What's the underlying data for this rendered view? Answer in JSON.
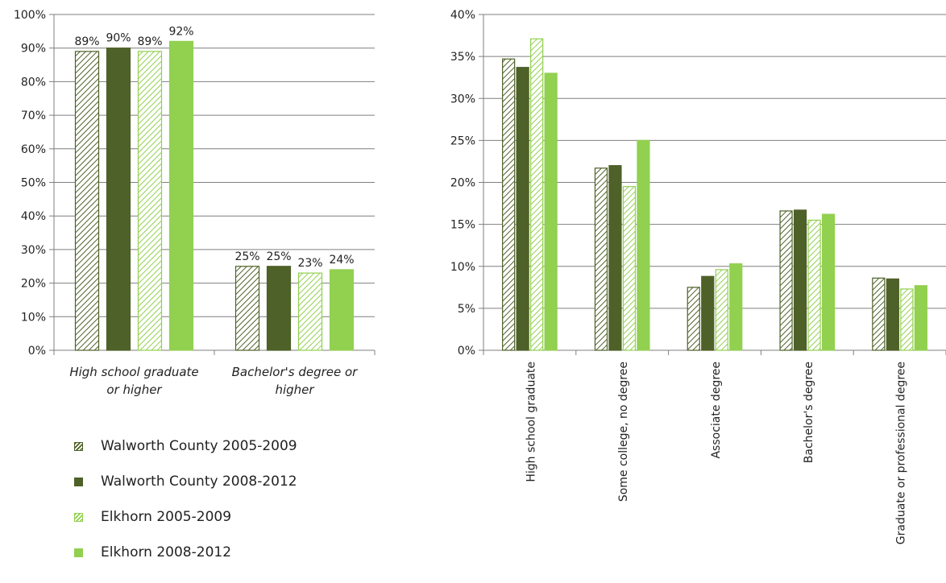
{
  "colors": {
    "walworth_dark": "#4e6128",
    "elkhorn_light": "#92d050",
    "grid": "#7f7f7f",
    "axis": "#7f7f7f"
  },
  "legend": [
    {
      "label": "Walworth County 2005-2009",
      "style": "hatch-dark"
    },
    {
      "label": "Walworth County 2008-2012",
      "style": "solid-dark"
    },
    {
      "label": "Elkhorn 2005-2009",
      "style": "hatch-light"
    },
    {
      "label": "Elkhorn 2008-2012",
      "style": "solid-light"
    }
  ],
  "chart_data": [
    {
      "type": "bar",
      "categories": [
        "High school graduate or higher",
        "Bachelor's degree or higher"
      ],
      "category_lines": [
        [
          "High school graduate",
          "or higher"
        ],
        [
          "Bachelor's degree or",
          "higher"
        ]
      ],
      "category_style": "italic",
      "ylim": [
        0,
        100
      ],
      "ystep": 10,
      "y_tick_format": "percent",
      "gridlines": true,
      "data_labels": true,
      "series": [
        {
          "name": "Walworth County 2005-2009",
          "style": "hatch-dark",
          "values": [
            89,
            25
          ],
          "labels": [
            "89%",
            "25%"
          ]
        },
        {
          "name": "Walworth County 2008-2012",
          "style": "solid-dark",
          "values": [
            90,
            25
          ],
          "labels": [
            "90%",
            "25%"
          ]
        },
        {
          "name": "Elkhorn 2005-2009",
          "style": "hatch-light",
          "values": [
            89,
            23
          ],
          "labels": [
            "89%",
            "23%"
          ]
        },
        {
          "name": "Elkhorn 2008-2012",
          "style": "solid-light",
          "values": [
            92,
            24
          ],
          "labels": [
            "92%",
            "24%"
          ]
        }
      ]
    },
    {
      "type": "bar",
      "categories": [
        "High school graduate",
        "Some college, no degree",
        "Associate degree",
        "Bachelor's degree",
        "Graduate or professional degree"
      ],
      "category_rotation": -90,
      "ylim": [
        0,
        40
      ],
      "ystep": 5,
      "y_tick_format": "percent",
      "gridlines": true,
      "data_labels": false,
      "series": [
        {
          "name": "Walworth County 2005-2009",
          "style": "hatch-dark",
          "values": [
            34.7,
            21.7,
            7.5,
            16.6,
            8.6
          ]
        },
        {
          "name": "Walworth County 2008-2012",
          "style": "solid-dark",
          "values": [
            33.7,
            22.0,
            8.8,
            16.7,
            8.5
          ]
        },
        {
          "name": "Elkhorn 2005-2009",
          "style": "hatch-light",
          "values": [
            37.1,
            19.5,
            9.6,
            15.5,
            7.3
          ]
        },
        {
          "name": "Elkhorn 2008-2012",
          "style": "solid-light",
          "values": [
            33.0,
            25.0,
            10.3,
            16.2,
            7.7
          ]
        }
      ]
    }
  ]
}
